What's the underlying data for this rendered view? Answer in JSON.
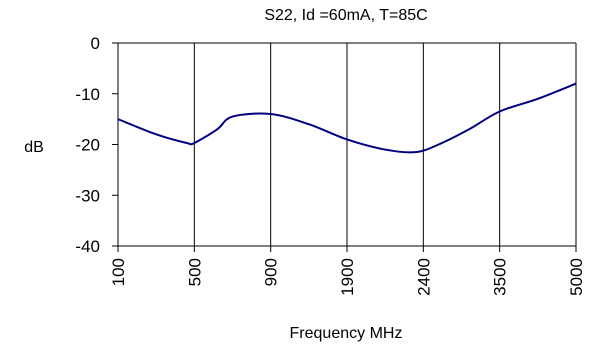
{
  "chart_data": {
    "type": "line",
    "title": "S22, Id =60mA, T=85C",
    "xlabel": "Frequency  MHz",
    "ylabel": "dB",
    "categories": [
      "100",
      "500",
      "900",
      "1900",
      "2400",
      "3500",
      "5000"
    ],
    "ylim": [
      -40,
      0
    ],
    "yticks": [
      0,
      -10,
      -20,
      -30,
      -40
    ],
    "grid": {
      "vertical": true,
      "horizontal": false
    },
    "series": [
      {
        "name": "",
        "color": "#000080",
        "x": [
          0,
          0.5,
          0.9,
          1.0,
          1.3,
          1.5,
          2.0,
          2.5,
          3.0,
          3.5,
          3.9,
          4.2,
          4.6,
          5.0,
          5.5,
          6.0
        ],
        "values": [
          -15,
          -18,
          -19.7,
          -19.7,
          -17,
          -14.5,
          -14,
          -16,
          -19,
          -21,
          -21.5,
          -20,
          -17,
          -13.5,
          -11,
          -8
        ]
      }
    ]
  }
}
